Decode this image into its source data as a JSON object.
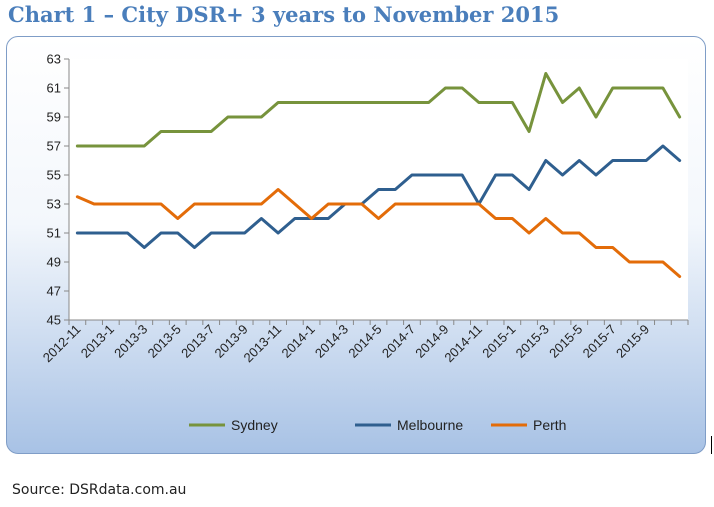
{
  "title": "Chart 1 – City DSR+ 3 years to November 2015",
  "source": "Source: DSRdata.com.au",
  "chart_data": {
    "type": "line",
    "x": [
      "2012-11",
      "2012-12",
      "2013-1",
      "2013-2",
      "2013-3",
      "2013-4",
      "2013-5",
      "2013-6",
      "2013-7",
      "2013-8",
      "2013-9",
      "2013-10",
      "2013-11",
      "2013-12",
      "2014-1",
      "2014-2",
      "2014-3",
      "2014-4",
      "2014-5",
      "2014-6",
      "2014-7",
      "2014-8",
      "2014-9",
      "2014-10",
      "2014-11",
      "2014-12",
      "2015-1",
      "2015-2",
      "2015-3",
      "2015-4",
      "2015-5",
      "2015-6",
      "2015-7",
      "2015-8",
      "2015-9",
      "2015-10",
      "2015-11"
    ],
    "tick_labels": [
      "2012-11",
      "2013-1",
      "2013-3",
      "2013-5",
      "2013-7",
      "2013-9",
      "2013-11",
      "2014-1",
      "2014-3",
      "2014-5",
      "2014-7",
      "2014-9",
      "2014-11",
      "2015-1",
      "2015-3",
      "2015-5",
      "2015-7",
      "2015-9"
    ],
    "y_ticks": [
      45,
      47,
      49,
      51,
      53,
      55,
      57,
      59,
      61,
      63
    ],
    "ylim": [
      45,
      63
    ],
    "grid": false,
    "legend_position": "bottom",
    "series": [
      {
        "name": "Sydney",
        "color": "#77933c",
        "values": [
          57,
          57,
          57,
          57,
          57,
          58,
          58,
          58,
          58,
          59,
          59,
          59,
          60,
          60,
          60,
          60,
          60,
          60,
          60,
          60,
          60,
          60,
          61,
          61,
          60,
          60,
          60,
          58,
          62,
          60,
          61,
          59,
          61,
          61,
          61,
          61,
          59
        ]
      },
      {
        "name": "Melbourne",
        "color": "#2f5f8f",
        "values": [
          51,
          51,
          51,
          51,
          50,
          51,
          51,
          50,
          51,
          51,
          51,
          52,
          51,
          52,
          52,
          52,
          53,
          53,
          54,
          54,
          55,
          55,
          55,
          55,
          53,
          55,
          55,
          54,
          56,
          55,
          56,
          55,
          56,
          56,
          56,
          57,
          56
        ]
      },
      {
        "name": "Perth",
        "color": "#e36c09",
        "values": [
          53.5,
          53,
          53,
          53,
          53,
          53,
          52,
          53,
          53,
          53,
          53,
          53,
          54,
          53,
          52,
          53,
          53,
          53,
          52,
          53,
          53,
          53,
          53,
          53,
          53,
          52,
          52,
          51,
          52,
          51,
          51,
          50,
          50,
          49,
          49,
          49,
          48
        ]
      }
    ]
  }
}
